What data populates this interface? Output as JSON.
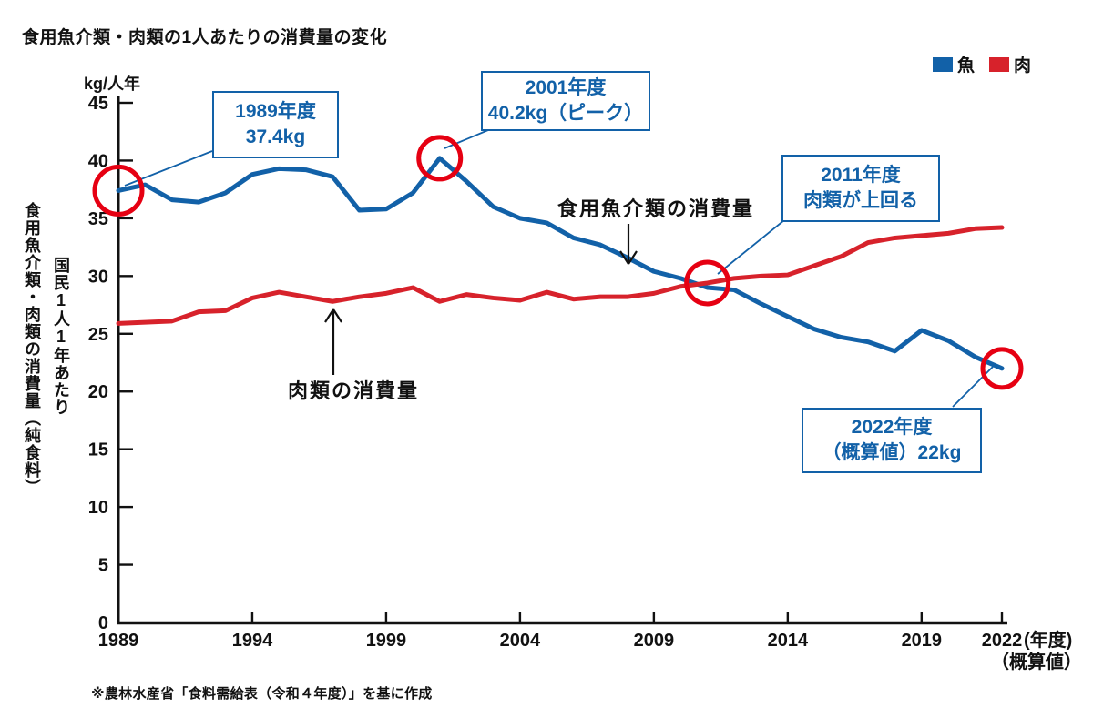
{
  "title": "食用魚介類・肉類の1人あたりの消費量の変化",
  "unit_label": "kg/人年",
  "axis_label_outer": "食用魚介類・肉類の消費量（純食料）",
  "axis_label_inner": "国民1人1年あたり",
  "legend": {
    "fish": "魚",
    "meat": "肉"
  },
  "series_pointers": {
    "fish": "食用魚介類の消費量",
    "meat": "肉類の消費量"
  },
  "annotations": [
    {
      "lines": [
        "1989年度",
        "37.4kg"
      ],
      "year": 1989,
      "value": 37.4
    },
    {
      "lines": [
        "2001年度",
        "40.2kg（ピーク）"
      ],
      "year": 2001,
      "value": 40.2
    },
    {
      "lines": [
        "2011年度",
        "肉類が上回る"
      ],
      "year": 2011,
      "value": 29.4
    },
    {
      "lines": [
        "2022年度",
        "（概算値）22kg"
      ],
      "year": 2022,
      "value": 22
    }
  ],
  "x_axis": {
    "suffix": "(年度)",
    "suffix_note": "（概算値）"
  },
  "source": "※農林水産省「食料需給表（令和４年度）」を基に作成",
  "colors": {
    "fish": "#1261a8",
    "meat": "#d7222b",
    "circle": "#e60012",
    "axis": "#111111"
  },
  "chart_data": {
    "type": "line",
    "title": "食用魚介類・肉類の1人あたりの消費量の変化",
    "ylabel": "kg/人年",
    "xlabel": "年度",
    "grid": false,
    "legend_position": "top-right",
    "ylim": [
      0,
      45
    ],
    "ytick_step": 5,
    "xticks": [
      1989,
      1994,
      1999,
      2004,
      2009,
      2014,
      2019,
      2022
    ],
    "x": [
      1989,
      1990,
      1991,
      1992,
      1993,
      1994,
      1995,
      1996,
      1997,
      1998,
      1999,
      2000,
      2001,
      2002,
      2003,
      2004,
      2005,
      2006,
      2007,
      2008,
      2009,
      2010,
      2011,
      2012,
      2013,
      2014,
      2015,
      2016,
      2017,
      2018,
      2019,
      2020,
      2021,
      2022
    ],
    "series": [
      {
        "name": "魚",
        "color": "#1261a8",
        "values": [
          37.4,
          37.9,
          36.6,
          36.4,
          37.2,
          38.8,
          39.3,
          39.2,
          38.6,
          35.7,
          35.8,
          37.2,
          40.2,
          38.2,
          36.0,
          35.0,
          34.6,
          33.3,
          32.7,
          31.6,
          30.4,
          29.8,
          29.0,
          28.8,
          27.6,
          26.5,
          25.4,
          24.7,
          24.3,
          23.5,
          25.3,
          24.4,
          23.0,
          22.0
        ]
      },
      {
        "name": "肉",
        "color": "#d7222b",
        "values": [
          25.9,
          26.0,
          26.1,
          26.9,
          27.0,
          28.1,
          28.6,
          28.2,
          27.8,
          28.2,
          28.5,
          29.0,
          27.8,
          28.4,
          28.1,
          27.9,
          28.6,
          28.0,
          28.2,
          28.2,
          28.5,
          29.1,
          29.4,
          29.8,
          30.0,
          30.1,
          30.9,
          31.7,
          32.9,
          33.3,
          33.5,
          33.7,
          34.1,
          34.2
        ]
      }
    ]
  }
}
